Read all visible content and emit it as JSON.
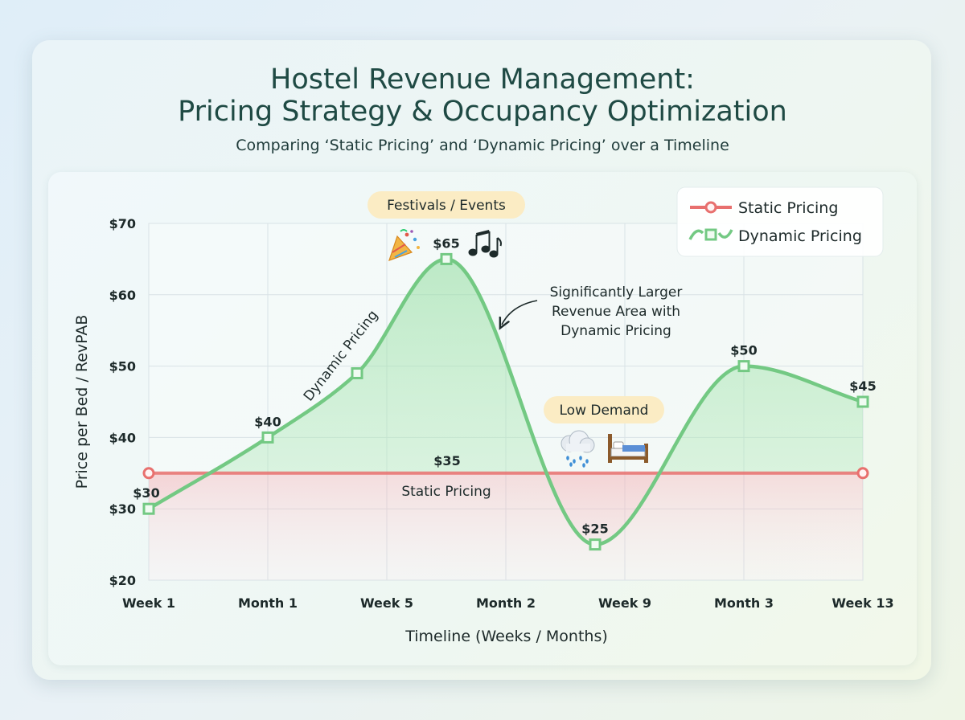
{
  "chart_data": {
    "type": "line",
    "title_line1": "Hostel Revenue Management:",
    "title_line2": "Pricing Strategy & Occupancy Optimization",
    "subtitle": "Comparing ‘Static Pricing’ and ‘Dynamic Pricing’ over a Timeline",
    "xlabel": "Timeline (Weeks / Months)",
    "ylabel": "Price per Bed / RevPAB",
    "categories": [
      "Week 1",
      "Month 1",
      "Week 5",
      "Month 2",
      "Week 9",
      "Month 3",
      "Week 13"
    ],
    "ylim": [
      20,
      70
    ],
    "yticks": [
      20,
      30,
      40,
      50,
      60,
      70
    ],
    "ytick_labels": [
      "$20",
      "$30",
      "$40",
      "$50",
      "$60",
      "$70"
    ],
    "grid": true,
    "legend_position": "top-right",
    "series": [
      {
        "name": "Static Pricing",
        "color": "#e8706e",
        "marker": "circle",
        "points": [
          [
            0,
            35
          ],
          [
            6,
            35
          ]
        ],
        "inline_label": "Static Pricing",
        "value_label": "$35"
      },
      {
        "name": "Dynamic Pricing",
        "color": "#73c983",
        "marker": "square",
        "points": [
          [
            0,
            30
          ],
          [
            1,
            40
          ],
          [
            1.75,
            49
          ],
          [
            2.5,
            65
          ],
          [
            3.75,
            25
          ],
          [
            5,
            50
          ],
          [
            6,
            45
          ]
        ],
        "point_labels": [
          "$30",
          "$40",
          "",
          "$65",
          "$25",
          "$50",
          "$45"
        ],
        "inline_label": "Dynamic Pricing"
      }
    ],
    "annotations": {
      "festivals": "Festivals / Events",
      "low_demand": "Low Demand",
      "revenue_area": [
        "Significantly Larger",
        "Revenue Area with",
        "Dynamic Pricing"
      ]
    },
    "icons": {
      "festival": "party-popper-icon",
      "music": "music-notes-icon",
      "rain": "rain-cloud-icon",
      "bed": "bed-icon"
    }
  }
}
